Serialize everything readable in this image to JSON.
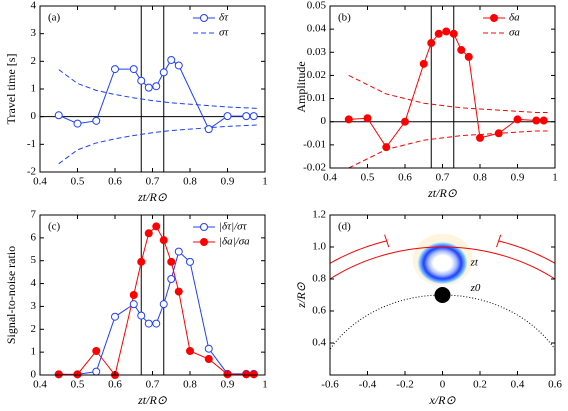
{
  "chart_data": [
    {
      "type": "line",
      "annotation": "(a)",
      "xlabel": "zt/R⊙",
      "ylabel": "Travel time [s]",
      "xlim": [
        0.4,
        1
      ],
      "xticks": [
        0.4,
        0.5,
        0.6,
        0.7,
        0.8,
        0.9,
        1
      ],
      "ylim": [
        -2,
        4
      ],
      "yticks": [
        -2,
        -1,
        0,
        1,
        2,
        3,
        4
      ],
      "vlines": [
        0.67,
        0.73
      ],
      "hlines": [
        0
      ],
      "legend": "upper right",
      "series": [
        {
          "name": "δτ",
          "color": "#1f3fff",
          "linestyle": "solid",
          "marker": "open",
          "x": [
            0.45,
            0.5,
            0.55,
            0.6,
            0.65,
            0.67,
            0.69,
            0.71,
            0.73,
            0.75,
            0.77,
            0.85,
            0.9,
            0.95,
            0.97
          ],
          "values": [
            0.05,
            -0.25,
            -0.15,
            1.72,
            1.72,
            1.3,
            1.05,
            1.1,
            1.6,
            2.05,
            1.85,
            -0.45,
            0.02,
            0.02,
            0.02
          ]
        },
        {
          "name": "στ",
          "color": "#1f3fff",
          "linestyle": "dashed",
          "marker": "none",
          "x": [
            0.45,
            0.5,
            0.55,
            0.6,
            0.65,
            0.7,
            0.75,
            0.8,
            0.85,
            0.9,
            0.95,
            0.98
          ],
          "values": [
            1.7,
            1.2,
            0.95,
            0.8,
            0.68,
            0.58,
            0.5,
            0.45,
            0.4,
            0.35,
            0.32,
            0.3
          ]
        },
        {
          "color": "#1f3fff",
          "linestyle": "dashed",
          "marker": "none",
          "x": [
            0.45,
            0.5,
            0.55,
            0.6,
            0.65,
            0.7,
            0.75,
            0.8,
            0.85,
            0.9,
            0.95,
            0.98
          ],
          "values": [
            -1.7,
            -1.2,
            -0.95,
            -0.8,
            -0.68,
            -0.58,
            -0.5,
            -0.45,
            -0.4,
            -0.35,
            -0.32,
            -0.3
          ]
        }
      ]
    },
    {
      "type": "line",
      "annotation": "(b)",
      "xlabel": "zt/R⊙",
      "ylabel": "Amplitude",
      "xlim": [
        0.4,
        1
      ],
      "xticks": [
        0.4,
        0.5,
        0.6,
        0.7,
        0.8,
        0.9,
        1
      ],
      "ylim": [
        -0.02,
        0.05
      ],
      "yticks": [
        -0.02,
        -0.01,
        0,
        0.01,
        0.02,
        0.03,
        0.04,
        0.05
      ],
      "vlines": [
        0.67,
        0.73
      ],
      "hlines": [
        0
      ],
      "legend": "upper right",
      "series": [
        {
          "name": "δa",
          "color": "#ff0000",
          "linestyle": "solid",
          "marker": "filled",
          "x": [
            0.45,
            0.5,
            0.55,
            0.6,
            0.65,
            0.67,
            0.69,
            0.71,
            0.73,
            0.75,
            0.77,
            0.8,
            0.85,
            0.9,
            0.95,
            0.97
          ],
          "values": [
            0.001,
            0.0015,
            -0.011,
            0,
            0.025,
            0.034,
            0.038,
            0.039,
            0.038,
            0.031,
            0.028,
            -0.007,
            -0.005,
            0.001,
            0.0005,
            0.0005
          ]
        },
        {
          "name": "σa",
          "color": "#ff0000",
          "linestyle": "dashed",
          "marker": "none",
          "x": [
            0.45,
            0.5,
            0.55,
            0.6,
            0.65,
            0.7,
            0.75,
            0.8,
            0.85,
            0.9,
            0.95,
            0.98
          ],
          "values": [
            0.02,
            0.016,
            0.012,
            0.01,
            0.008,
            0.007,
            0.006,
            0.0055,
            0.005,
            0.0045,
            0.004,
            0.004
          ]
        },
        {
          "color": "#ff0000",
          "linestyle": "dashed",
          "marker": "none",
          "x": [
            0.45,
            0.5,
            0.55,
            0.6,
            0.65,
            0.7,
            0.75,
            0.8,
            0.85,
            0.9,
            0.95,
            0.98
          ],
          "values": [
            -0.02,
            -0.016,
            -0.012,
            -0.01,
            -0.008,
            -0.007,
            -0.006,
            -0.0055,
            -0.005,
            -0.0045,
            -0.004,
            -0.004
          ]
        }
      ]
    },
    {
      "type": "line",
      "annotation": "(c)",
      "xlabel": "zt/R⊙",
      "ylabel": "Signal-to-noise ratio",
      "xlim": [
        0.4,
        1
      ],
      "xticks": [
        0.4,
        0.5,
        0.6,
        0.7,
        0.8,
        0.9,
        1
      ],
      "ylim": [
        0,
        7
      ],
      "yticks": [
        0,
        1,
        2,
        3,
        4,
        5,
        6,
        7
      ],
      "vlines": [
        0.67,
        0.73
      ],
      "legend": "upper right",
      "series": [
        {
          "name": "|δτ|/στ",
          "color": "#1f3fff",
          "linestyle": "solid",
          "marker": "open",
          "x": [
            0.45,
            0.5,
            0.55,
            0.6,
            0.65,
            0.67,
            0.69,
            0.71,
            0.73,
            0.75,
            0.77,
            0.8,
            0.85,
            0.9,
            0.95,
            0.97
          ],
          "values": [
            0.03,
            0.03,
            0.15,
            2.55,
            3.1,
            2.6,
            2.25,
            2.25,
            3.1,
            4.2,
            5.4,
            4.95,
            1.15,
            0.05,
            0.05,
            0.05
          ]
        },
        {
          "name": "|δa|/σa",
          "color": "#ff0000",
          "linestyle": "solid",
          "marker": "filled",
          "x": [
            0.45,
            0.5,
            0.55,
            0.6,
            0.65,
            0.67,
            0.69,
            0.71,
            0.73,
            0.75,
            0.77,
            0.8,
            0.85,
            0.9,
            0.95,
            0.97
          ],
          "values": [
            0.03,
            0.03,
            1.05,
            0,
            3.5,
            4.95,
            6.2,
            6.5,
            5.9,
            4.95,
            3.65,
            1.05,
            0.7,
            0.03,
            0.03,
            0.03
          ]
        }
      ]
    },
    {
      "type": "image",
      "annotation": "(d)",
      "xlabel": "x/R⊙",
      "ylabel": "z/R⊙",
      "xlim": [
        -0.6,
        0.6
      ],
      "xticks": [
        -0.6,
        -0.4,
        -0.2,
        0,
        0.2,
        0.4,
        0.6
      ],
      "ylim": [
        0.2,
        1.2
      ],
      "yticks": [
        0.4,
        0.6,
        0.8,
        {
          "value": 1,
          "label": "1.0"
        },
        1.2
      ],
      "labels": [
        "zt",
        "z0"
      ]
    }
  ]
}
